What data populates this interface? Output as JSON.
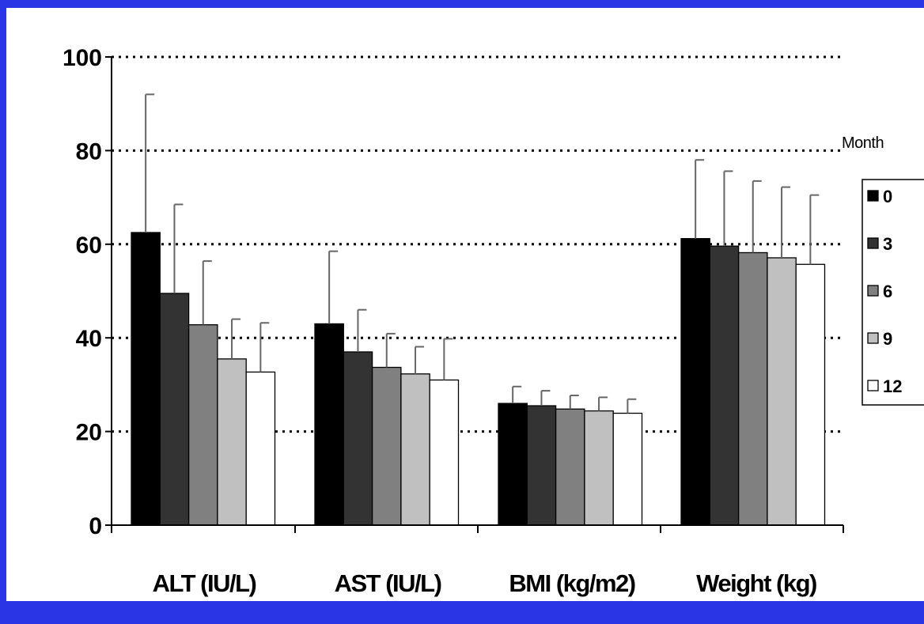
{
  "chart_data": {
    "type": "bar",
    "categories": [
      "ALT (IU/L)",
      "AST (IU/L)",
      "BMI (kg/m2)",
      "Weight (kg)"
    ],
    "legend_title": "Month",
    "legend_position": "right",
    "grid": true,
    "ylim": [
      0,
      100
    ],
    "yticks": [
      0,
      20,
      40,
      60,
      80,
      100
    ],
    "series": [
      {
        "name": "0",
        "color": "#000000",
        "values": [
          62.5,
          43,
          26,
          61.2
        ],
        "errors": [
          29.5,
          15.5,
          3.6,
          16.8
        ]
      },
      {
        "name": "3",
        "color": "#333333",
        "values": [
          49.5,
          37,
          25.5,
          59.6
        ],
        "errors": [
          19,
          9,
          3.2,
          16
        ]
      },
      {
        "name": "6",
        "color": "#808080",
        "values": [
          42.8,
          33.7,
          24.8,
          58.2
        ],
        "errors": [
          13.6,
          7.2,
          2.9,
          15.3
        ]
      },
      {
        "name": "9",
        "color": "#c0c0c0",
        "values": [
          35.5,
          32.3,
          24.4,
          57.1
        ],
        "errors": [
          8.5,
          5.8,
          2.9,
          15.1
        ]
      },
      {
        "name": "12",
        "color": "#ffffff",
        "values": [
          32.7,
          31,
          23.9,
          55.7
        ],
        "errors": [
          10.5,
          8.8,
          3,
          14.8
        ]
      }
    ]
  }
}
